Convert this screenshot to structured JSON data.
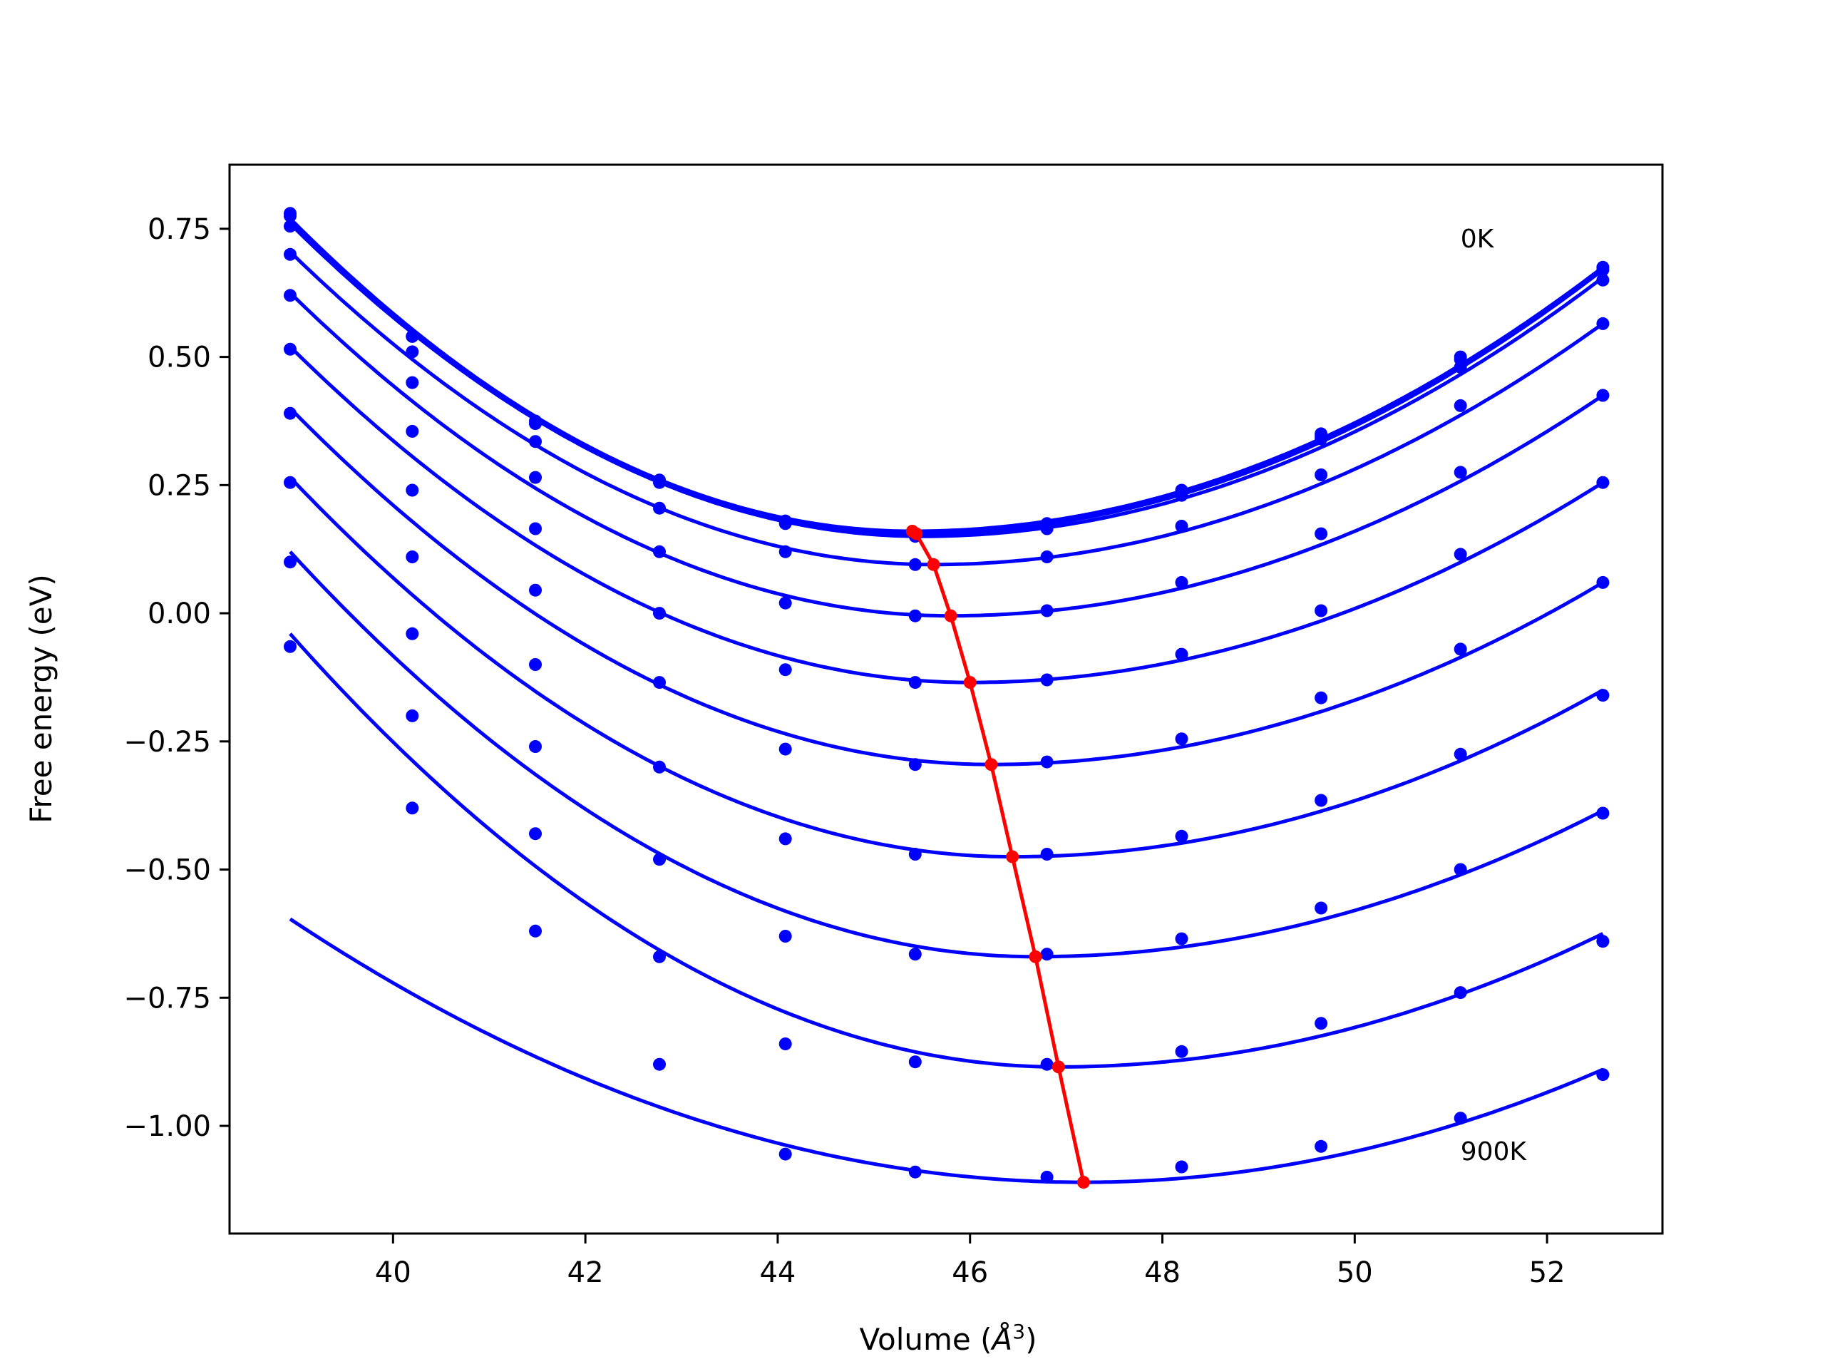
{
  "chart_data": {
    "type": "line",
    "title": "",
    "xlabel": "Volume (",
    "xlabel_symbol": "Å",
    "xlabel_exponent": "3",
    "xlabel_close": ")",
    "ylabel": "Free energy (eV)",
    "xlim": [
      38.3,
      53.2
    ],
    "ylim": [
      -1.21,
      0.875
    ],
    "xticks": [
      40,
      42,
      44,
      46,
      48,
      50,
      52
    ],
    "xtick_labels": [
      "40",
      "42",
      "44",
      "46",
      "48",
      "50",
      "52"
    ],
    "yticks": [
      -1.0,
      -0.75,
      -0.5,
      -0.25,
      0.0,
      0.25,
      0.5,
      0.75
    ],
    "ytick_labels": [
      "−1.00",
      "−0.75",
      "−0.50",
      "−0.25",
      "0.00",
      "0.25",
      "0.50",
      "0.75"
    ],
    "grid": false,
    "legend": "none",
    "annotations": [
      {
        "text": "0K",
        "x": 51.1,
        "y": 0.73
      },
      {
        "text": "900K",
        "x": 51.1,
        "y": -1.05
      }
    ],
    "colors": {
      "curves": "#0000ff",
      "points": "#0000ff",
      "minimum_line": "#ff0000"
    },
    "x": [
      38.93,
      40.2,
      41.48,
      42.77,
      44.08,
      45.43,
      46.8,
      48.2,
      49.65,
      51.1,
      52.58
    ],
    "series": [
      {
        "values": [
          0.78,
          0.54,
          0.375,
          0.26,
          0.18,
          0.155,
          0.175,
          0.24,
          0.35,
          0.5,
          0.675
        ],
        "fit_min_x": 45.4,
        "fit_min_y": 0.16,
        "fit_left_y": 0.77,
        "fit_right_y": 0.675
      },
      {
        "values": [
          0.775,
          0.54,
          0.37,
          0.255,
          0.18,
          0.15,
          0.17,
          0.235,
          0.345,
          0.495,
          0.67
        ],
        "fit_min_x": 45.44,
        "fit_min_y": 0.155,
        "fit_left_y": 0.765,
        "fit_right_y": 0.67
      },
      {
        "values": [
          0.755,
          0.51,
          0.335,
          0.205,
          0.175,
          0.155,
          0.165,
          0.23,
          0.34,
          0.48,
          0.65
        ],
        "fit_min_x": 45.5,
        "fit_min_y": 0.15,
        "fit_left_y": 0.76,
        "fit_right_y": 0.655
      },
      {
        "values": [
          0.7,
          0.45,
          0.265,
          0.12,
          0.12,
          0.095,
          0.11,
          0.17,
          0.27,
          0.405,
          0.565
        ],
        "fit_min_x": 45.62,
        "fit_min_y": 0.095,
        "fit_left_y": 0.705,
        "fit_right_y": 0.565
      },
      {
        "values": [
          0.62,
          0.355,
          0.165,
          0.0,
          0.02,
          -0.005,
          0.005,
          0.06,
          0.155,
          0.275,
          0.425
        ],
        "fit_min_x": 45.8,
        "fit_min_y": -0.005,
        "fit_left_y": 0.625,
        "fit_right_y": 0.425
      },
      {
        "values": [
          0.515,
          0.24,
          0.045,
          -0.135,
          -0.11,
          -0.135,
          -0.13,
          -0.08,
          0.005,
          0.115,
          0.255
        ],
        "fit_min_x": 46.0,
        "fit_min_y": -0.135,
        "fit_left_y": 0.52,
        "fit_right_y": 0.255
      },
      {
        "values": [
          0.39,
          0.11,
          -0.1,
          -0.3,
          -0.265,
          -0.295,
          -0.29,
          -0.245,
          -0.165,
          -0.07,
          0.06
        ],
        "fit_min_x": 46.22,
        "fit_min_y": -0.295,
        "fit_left_y": 0.4,
        "fit_right_y": 0.06
      },
      {
        "values": [
          0.255,
          -0.04,
          -0.26,
          -0.48,
          -0.44,
          -0.47,
          -0.47,
          -0.435,
          -0.365,
          -0.275,
          -0.16
        ],
        "fit_min_x": 46.44,
        "fit_min_y": -0.475,
        "fit_left_y": 0.265,
        "fit_right_y": -0.15
      },
      {
        "values": [
          0.1,
          -0.2,
          -0.43,
          -0.67,
          -0.63,
          -0.665,
          -0.665,
          -0.635,
          -0.575,
          -0.5,
          -0.39
        ],
        "fit_min_x": 46.68,
        "fit_min_y": -0.67,
        "fit_left_y": 0.12,
        "fit_right_y": -0.385
      },
      {
        "values": [
          -0.065,
          -0.38,
          -0.62,
          -0.88,
          -0.84,
          -0.875,
          -0.88,
          -0.855,
          -0.8,
          -0.74,
          -0.64
        ],
        "fit_min_x": 46.92,
        "fit_min_y": -0.885,
        "fit_left_y": -0.04,
        "fit_right_y": -0.625
      },
      {
        "values": [
          null,
          null,
          null,
          null,
          -1.055,
          -1.09,
          -1.1,
          -1.08,
          -1.04,
          -0.985,
          -0.9
        ],
        "fit_min_x": 47.18,
        "fit_min_y": -1.11,
        "fit_left_y": null,
        "fit_right_y": -0.89
      }
    ],
    "minimum_line": {
      "x": [
        45.4,
        45.44,
        45.62,
        45.8,
        46.0,
        46.22,
        46.44,
        46.68,
        46.92,
        47.18
      ],
      "y": [
        0.16,
        0.155,
        0.095,
        -0.005,
        -0.135,
        -0.295,
        -0.475,
        -0.67,
        -0.885,
        -1.11
      ]
    }
  }
}
